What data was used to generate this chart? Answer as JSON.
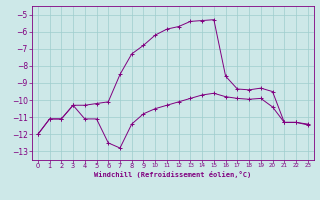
{
  "xlabel": "Windchill (Refroidissement éolien,°C)",
  "xlim": [
    -0.5,
    23.5
  ],
  "ylim": [
    -13.5,
    -4.5
  ],
  "yticks": [
    -13,
    -12,
    -11,
    -10,
    -9,
    -8,
    -7,
    -6,
    -5
  ],
  "xticks": [
    0,
    1,
    2,
    3,
    4,
    5,
    6,
    7,
    8,
    9,
    10,
    11,
    12,
    13,
    14,
    15,
    16,
    17,
    18,
    19,
    20,
    21,
    22,
    23
  ],
  "bg_color": "#cde8e8",
  "line_color": "#800080",
  "grid_color": "#9ecece",
  "curve1_x": [
    0,
    1,
    2,
    3,
    4,
    5,
    6,
    7,
    8,
    9,
    10,
    11,
    12,
    13,
    14,
    15,
    16,
    17,
    18,
    19,
    20,
    21,
    22,
    23
  ],
  "curve1_y": [
    -12.0,
    -11.1,
    -11.1,
    -10.3,
    -11.1,
    -11.1,
    -12.5,
    -12.8,
    -11.4,
    -10.8,
    -10.5,
    -10.3,
    -10.1,
    -9.9,
    -9.7,
    -9.6,
    -9.8,
    -9.9,
    -9.95,
    -9.9,
    -10.4,
    -11.3,
    -11.3,
    -11.4
  ],
  "curve2_x": [
    0,
    1,
    2,
    3,
    4,
    5,
    6,
    7,
    8,
    9,
    10,
    11,
    12,
    13,
    14,
    15,
    16,
    17,
    18,
    19,
    20,
    21,
    22,
    23
  ],
  "curve2_y": [
    -12.0,
    -11.1,
    -11.1,
    -10.3,
    -10.3,
    -10.2,
    -10.1,
    -8.5,
    -7.3,
    -6.8,
    -6.2,
    -5.85,
    -5.7,
    -5.4,
    -5.35,
    -5.3,
    -8.6,
    -9.35,
    -9.4,
    -9.3,
    -9.5,
    -11.3,
    -11.3,
    -11.45
  ]
}
